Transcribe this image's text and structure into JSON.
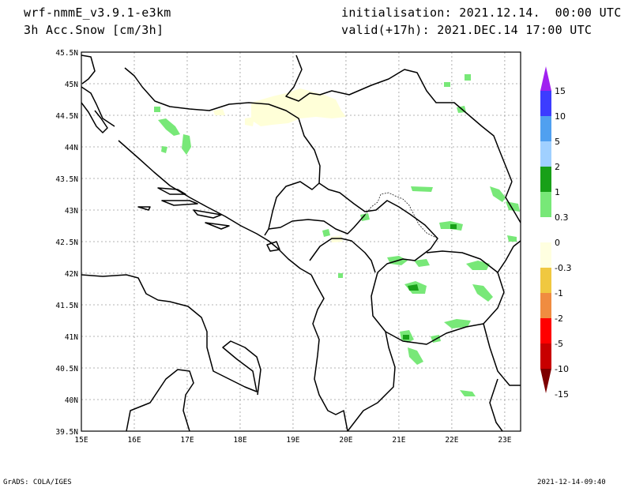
{
  "header": {
    "model": "wrf-nmmE_v3.9.1-e3km",
    "field": "3h Acc.Snow [cm/3h]",
    "initialisation": "initialisation: 2021.12.14.  00:00 UTC",
    "valid": "valid(+17h): 2021.DEC.14 17:00 UTC"
  },
  "footer": {
    "left": "GrADS: COLA/IGES",
    "right": "2021-12-14-09:40"
  },
  "map": {
    "lon_range": [
      15,
      23.3
    ],
    "lat_range": [
      39.5,
      45.5
    ],
    "lon_ticks": [
      "15E",
      "16E",
      "17E",
      "18E",
      "19E",
      "20E",
      "21E",
      "22E",
      "23E"
    ],
    "lat_ticks": [
      "39.5N",
      "40N",
      "40.5N",
      "41N",
      "41.5N",
      "42N",
      "42.5N",
      "43N",
      "43.5N",
      "44N",
      "44.5N",
      "45N",
      "45.5N"
    ],
    "grid": "dotted",
    "colors": {
      "border": "#000000",
      "grid": "#9a9a9a"
    }
  },
  "colorbar": {
    "labels": [
      "15",
      "10",
      "5",
      "2",
      "1",
      "0.3",
      "0",
      "-0.3",
      "-1",
      "-2",
      "-5",
      "-10",
      "-15"
    ],
    "colors": [
      "#a020f0",
      "#3c3cff",
      "#50a0f0",
      "#a0d0ff",
      "#18a018",
      "#78e878",
      "#ffffff",
      "#ffffe0",
      "#f0c840",
      "#f08c40",
      "#ff0000",
      "#c80000",
      "#7d0000"
    ]
  }
}
